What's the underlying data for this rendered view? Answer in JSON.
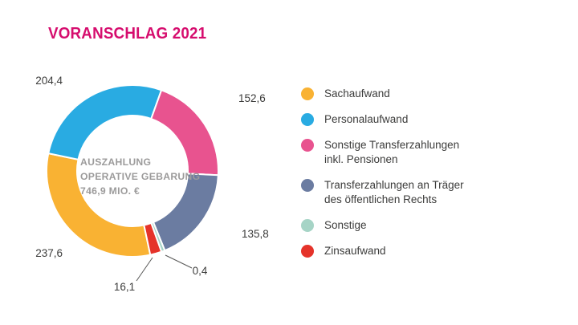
{
  "chart_data": {
    "type": "donut",
    "title": "VORANSCHLAG 2021",
    "center_lines": [
      "AUSZAHLUNG",
      "OPERATIVE GEBARUNG",
      "746,9 MIO. €"
    ],
    "total": 746.9,
    "unit": "Mio. €",
    "start_angle_deg": 168,
    "legend_position": "right",
    "segments": [
      {
        "label": "Sachaufwand",
        "value": 237.6,
        "value_label": "237,6",
        "color": "#F9B233"
      },
      {
        "label": "Personalaufwand",
        "value": 204.4,
        "value_label": "204,4",
        "color": "#29ABE2"
      },
      {
        "label": "Sonstige Transferzahlungen\ninkl. Pensionen",
        "value": 152.6,
        "value_label": "152,6",
        "color": "#E8538F"
      },
      {
        "label": "Transferzahlungen an Träger\ndes öffentlichen Rechts",
        "value": 135.8,
        "value_label": "135,8",
        "color": "#6B7CA1"
      },
      {
        "label": "Sonstige",
        "value": 0.4,
        "value_label": "0,4",
        "color": "#A6D4C6"
      },
      {
        "label": "Zinsaufwand",
        "value": 16.1,
        "value_label": "16,1",
        "color": "#E5332A"
      }
    ]
  }
}
